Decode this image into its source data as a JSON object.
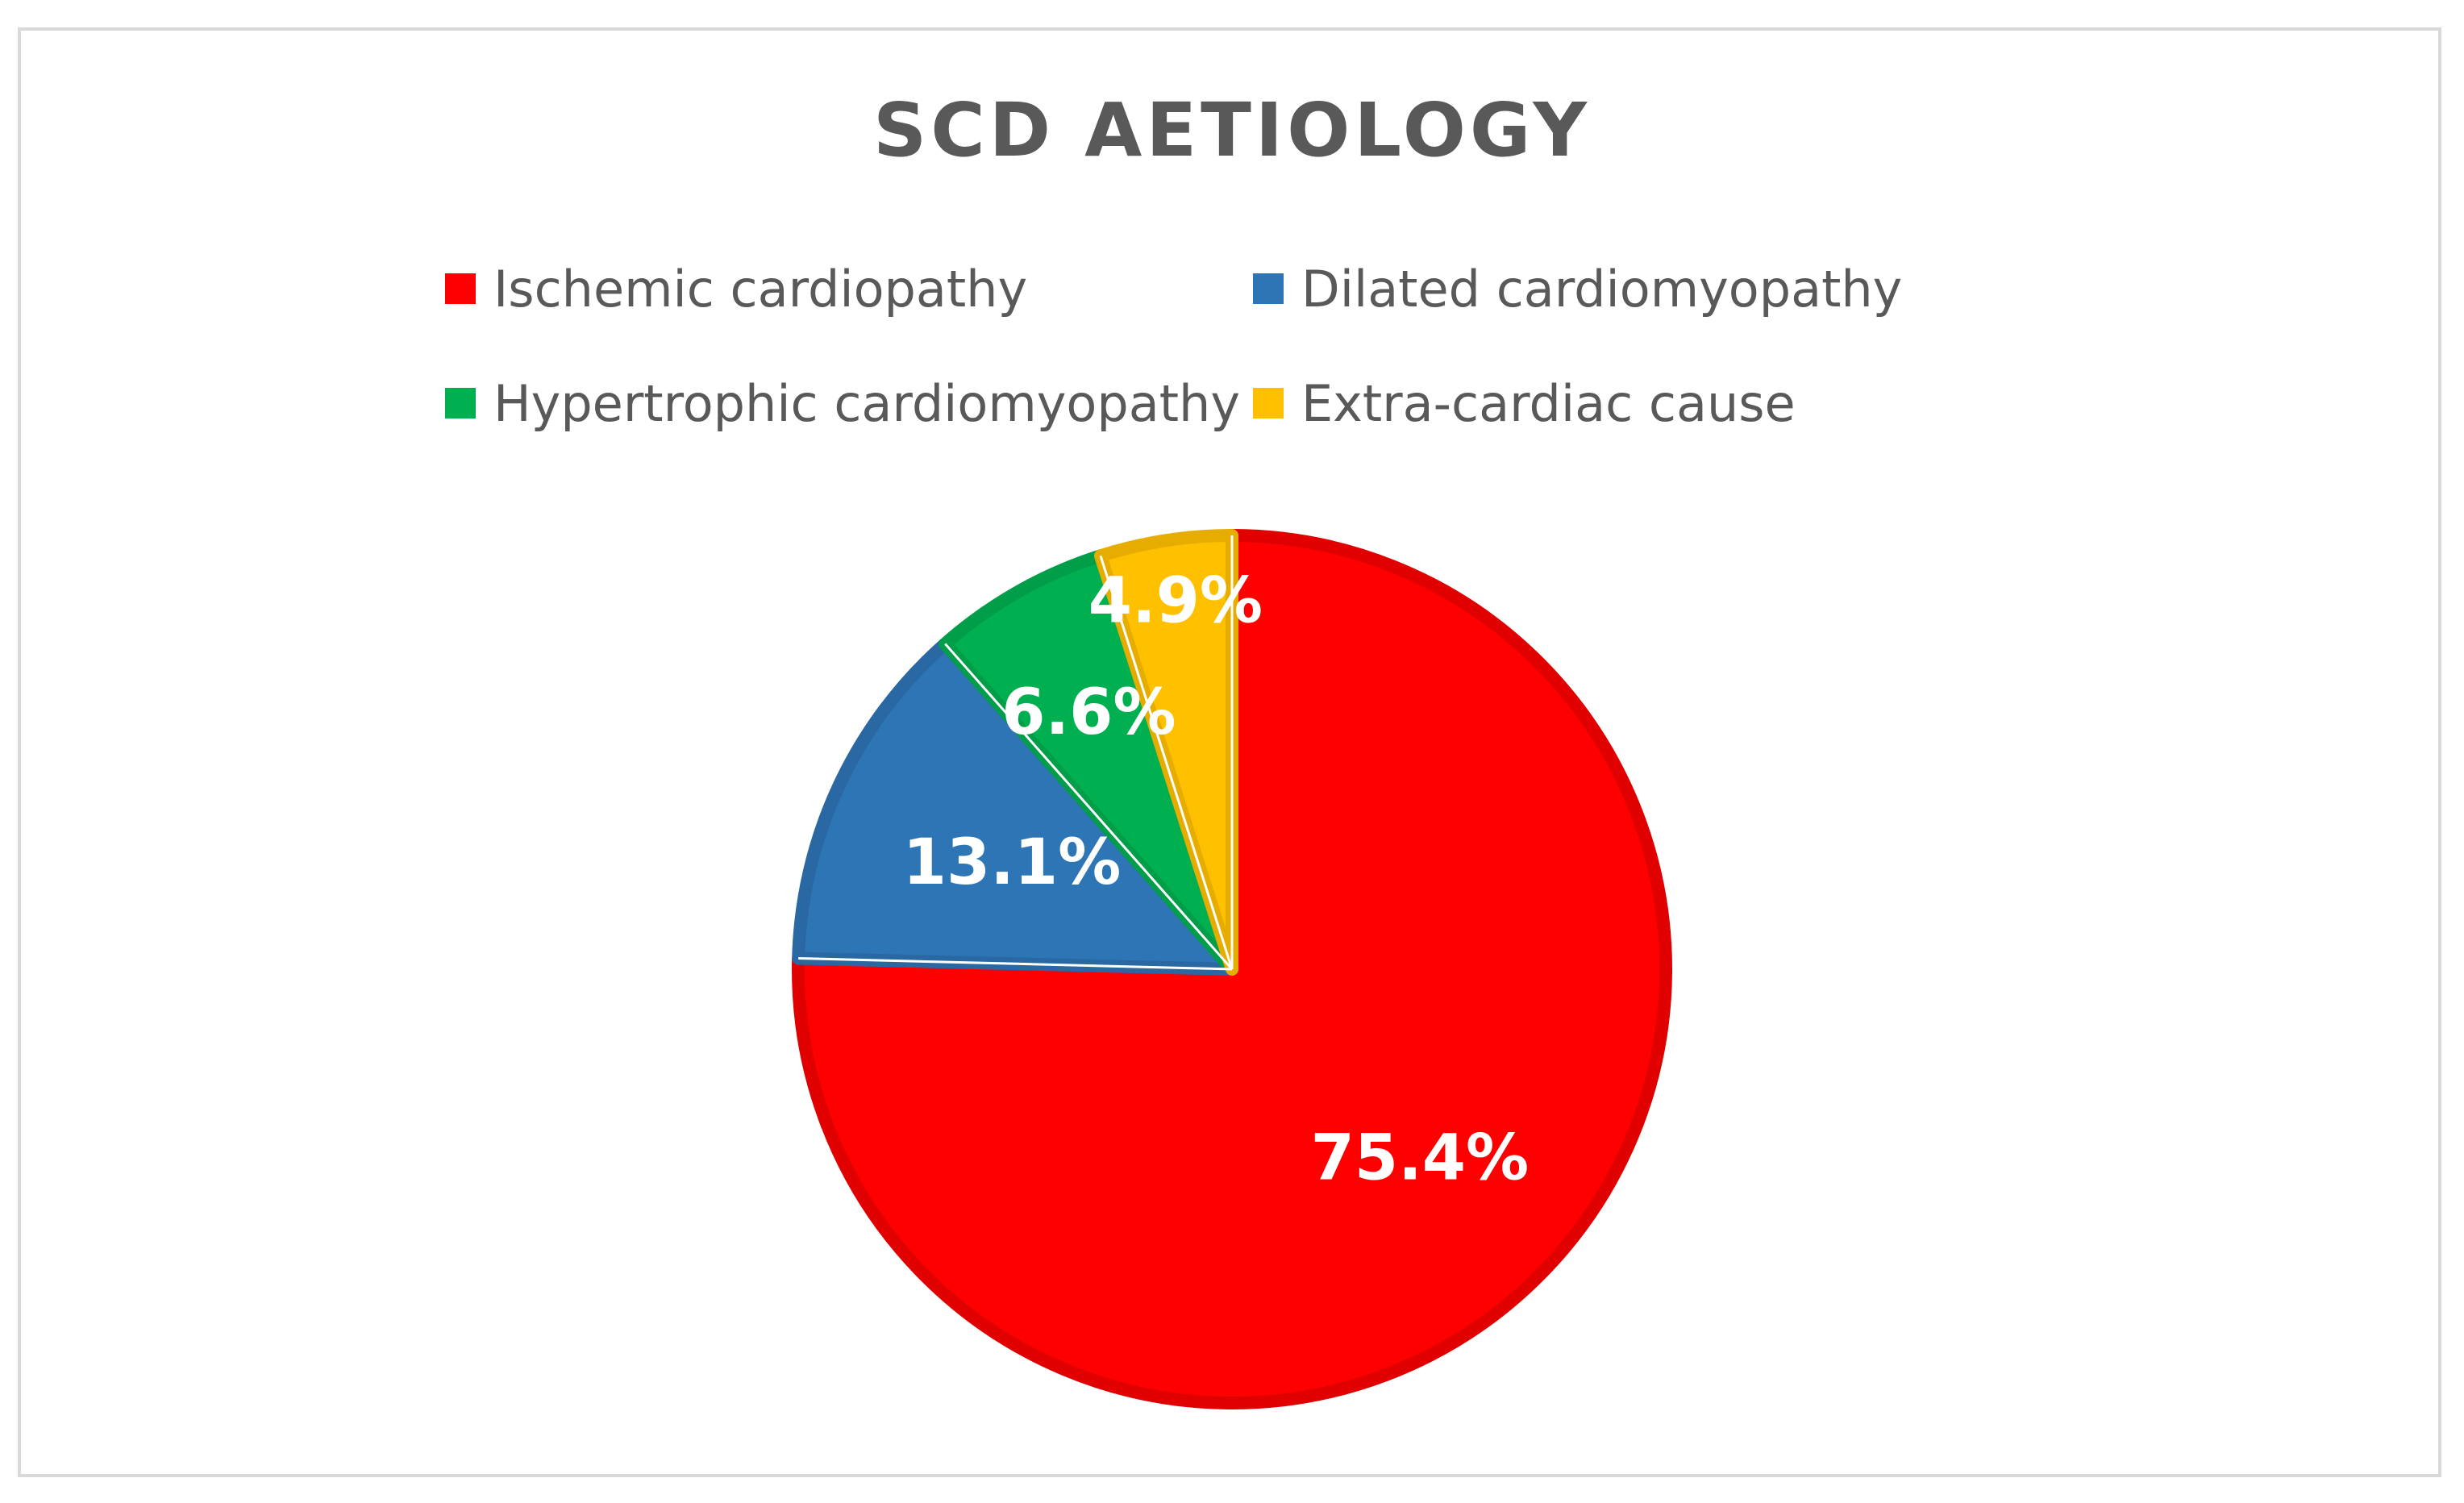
{
  "chart_data": {
    "type": "pie",
    "title": "SCD AETIOLOGY",
    "start_angle_deg": 0,
    "direction": "clockwise",
    "legend_position": "top",
    "slices": [
      {
        "name": "Ischemic cardiopathy",
        "value": 75.4,
        "label": "75.4%",
        "color": "#ff0000",
        "edge_color": "#e00000"
      },
      {
        "name": "Dilated cardiomyopathy",
        "value": 13.1,
        "label": "13.1%",
        "color": "#2e75b6",
        "edge_color": "#2a68a3"
      },
      {
        "name": "Hypertrophic cardiomyopathy",
        "value": 6.6,
        "label": "6.6%",
        "color": "#00b050",
        "edge_color": "#009e48"
      },
      {
        "name": "Extra-cardiac cause",
        "value": 4.9,
        "label": "4.9%",
        "color": "#ffc000",
        "edge_color": "#e6ad00"
      }
    ]
  }
}
